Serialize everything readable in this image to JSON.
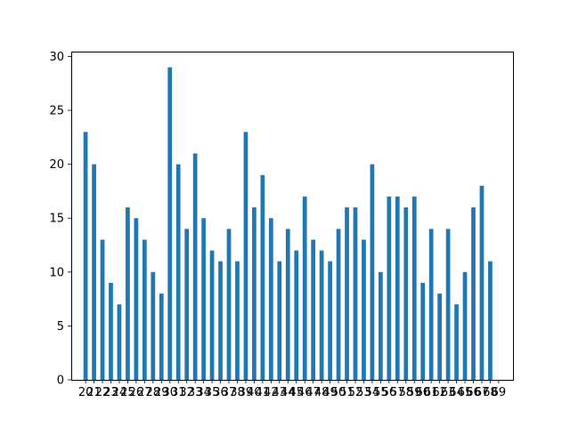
{
  "chart_data": {
    "type": "bar",
    "title": "",
    "xlabel": "",
    "ylabel": "",
    "categories": [
      "20",
      "21",
      "22",
      "23",
      "24",
      "25",
      "26",
      "27",
      "28",
      "29",
      "30",
      "31",
      "32",
      "33",
      "34",
      "35",
      "36",
      "37",
      "38",
      "39",
      "40",
      "41",
      "42",
      "43",
      "44",
      "45",
      "46",
      "47",
      "48",
      "49",
      "50",
      "51",
      "52",
      "53",
      "54",
      "55",
      "56",
      "57",
      "58",
      "59",
      "60",
      "61",
      "62",
      "63",
      "64",
      "65",
      "66",
      "67",
      "68",
      "69"
    ],
    "values": [
      23,
      20,
      13,
      9,
      7,
      16,
      15,
      13,
      10,
      8,
      29,
      20,
      14,
      21,
      15,
      12,
      11,
      14,
      11,
      23,
      16,
      19,
      15,
      11,
      14,
      12,
      17,
      13,
      12,
      11,
      14,
      16,
      16,
      13,
      20,
      10,
      17,
      17,
      16,
      17,
      9,
      14,
      8,
      14,
      7,
      10,
      16,
      18,
      11,
      0
    ],
    "ylim": [
      0,
      30.45
    ],
    "yticks": [
      0,
      5,
      10,
      15,
      20,
      25,
      30
    ],
    "bar_color": "#1f77b4",
    "grid": false,
    "legend": "none"
  }
}
